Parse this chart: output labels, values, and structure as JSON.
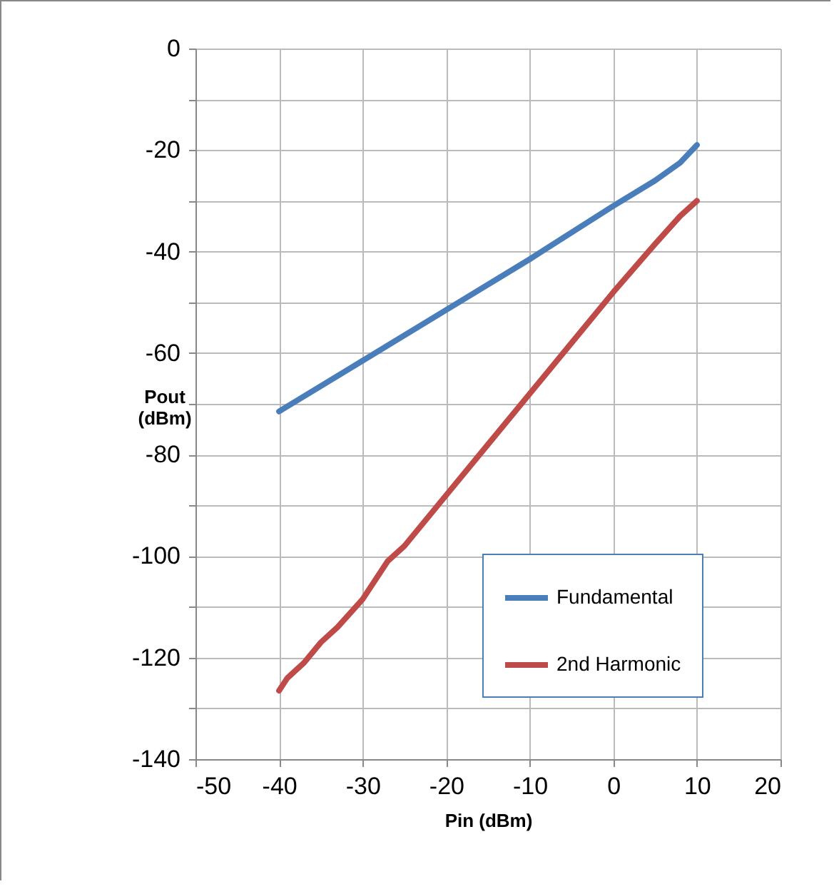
{
  "chart_data": {
    "type": "line",
    "xlabel": "Pin (dBm)",
    "ylabel": "Pout (dBm)",
    "xlim": [
      -50,
      20
    ],
    "xticks": [
      -50,
      -40,
      -30,
      -20,
      -10,
      0,
      10,
      20
    ],
    "ylim": [
      -140,
      0
    ],
    "yticks": [
      -140,
      {
        "value": -130,
        "label": null
      },
      -120,
      {
        "value": -110,
        "label": null
      },
      -100,
      {
        "value": -90,
        "label": null
      },
      -80,
      {
        "value": -70,
        "label": null
      },
      -60,
      {
        "value": -50,
        "label": null
      },
      -40,
      {
        "value": -30,
        "label": null
      },
      -20,
      {
        "value": -10,
        "label": null
      },
      0
    ],
    "grid": true,
    "legend": "bottom right",
    "line_style": "solid",
    "marker": "none",
    "series": [
      {
        "name": "Fundamental",
        "color": "#4a7ebb",
        "x": [
          -40,
          -30,
          -20,
          -10,
          0,
          5,
          8,
          10
        ],
        "values": [
          -71.5,
          -61.5,
          -51.5,
          -41.5,
          -31,
          -26,
          -22.5,
          -19
        ]
      },
      {
        "name": "2nd Harmonic",
        "color": "#be4b48",
        "x": [
          -40,
          -39,
          -37,
          -35,
          -33,
          -30,
          -27,
          -25,
          -20,
          -15,
          -10,
          -5,
          0,
          5,
          8,
          10
        ],
        "values": [
          -126.5,
          -124,
          -121,
          -117,
          -114,
          -108.5,
          -101,
          -98,
          -88,
          -78,
          -68,
          -58,
          -48,
          -38.5,
          -33,
          -30
        ]
      }
    ]
  }
}
